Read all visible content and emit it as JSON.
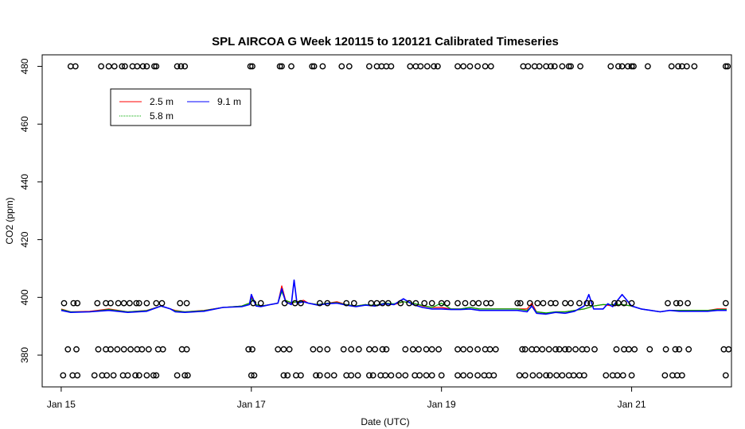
{
  "chart_data": {
    "type": "line",
    "title": "SPL AIRCOA G  Week 120115 to 120121  Calibrated Timeseries",
    "xlabel": "Date (UTC)",
    "ylabel": "CO2 (ppm)",
    "xlim": [
      -0.2,
      7.05
    ],
    "ylim": [
      369,
      484
    ],
    "x_ticks": [
      {
        "value": 0,
        "label": "Jan 15"
      },
      {
        "value": 2,
        "label": "Jan 17"
      },
      {
        "value": 4,
        "label": "Jan 19"
      },
      {
        "value": 6,
        "label": "Jan 21"
      }
    ],
    "y_ticks": [
      380,
      400,
      420,
      440,
      460,
      480
    ],
    "grid": false,
    "legend": {
      "placement": "top-left",
      "entries": [
        {
          "label": "2.5 m",
          "color": "#ff0000"
        },
        {
          "label": "9.1 m",
          "color": "#0000ff"
        },
        {
          "label": "5.8 m",
          "color": "#00aa00"
        }
      ]
    },
    "series": [
      {
        "name": "2.5 m",
        "color": "#ff0000",
        "x": [
          0.0,
          0.1,
          0.3,
          0.5,
          0.7,
          0.9,
          1.05,
          1.15,
          1.2,
          1.3,
          1.5,
          1.7,
          1.9,
          1.98,
          2.0,
          2.05,
          2.1,
          2.2,
          2.28,
          2.32,
          2.36,
          2.42,
          2.48,
          2.55,
          2.6,
          2.7,
          2.8,
          2.9,
          3.0,
          3.1,
          3.2,
          3.3,
          3.4,
          3.5,
          3.6,
          3.7,
          3.8,
          3.9,
          4.0,
          4.1,
          4.2,
          4.3,
          4.4,
          4.5,
          4.6,
          4.7,
          4.8,
          4.9,
          4.95,
          5.0,
          5.1,
          5.2,
          5.3,
          5.4,
          5.5,
          5.6,
          5.7,
          5.8,
          5.9,
          6.0,
          6.1,
          6.2,
          6.3,
          6.4,
          6.5,
          6.6,
          6.7,
          6.8,
          6.9,
          7.0
        ],
        "y": [
          396,
          395,
          395.2,
          396,
          395,
          395.5,
          397,
          396,
          395.5,
          395,
          395.5,
          396.5,
          397,
          398,
          400,
          397.5,
          397,
          397.5,
          398,
          404,
          399,
          398,
          398.5,
          399,
          398,
          397.5,
          398,
          398.5,
          397.5,
          397,
          397.5,
          397,
          398,
          397.5,
          398.5,
          398,
          397,
          396.5,
          396.5,
          396,
          396,
          396.5,
          396,
          396,
          396,
          396,
          396,
          396,
          398,
          395,
          394.5,
          395,
          395,
          395.5,
          396,
          397,
          397.5,
          397,
          397.5,
          397,
          396,
          395.5,
          395,
          395.5,
          395.5,
          395.5,
          395.5,
          395.5,
          396,
          396
        ]
      },
      {
        "name": "5.8 m",
        "color": "#00aa00",
        "x": [
          0.0,
          0.1,
          0.3,
          0.5,
          0.7,
          0.9,
          1.05,
          1.15,
          1.2,
          1.3,
          1.5,
          1.7,
          1.9,
          1.98,
          2.0,
          2.05,
          2.1,
          2.2,
          2.28,
          2.32,
          2.36,
          2.42,
          2.48,
          2.55,
          2.6,
          2.7,
          2.8,
          2.9,
          3.0,
          3.1,
          3.2,
          3.3,
          3.4,
          3.5,
          3.6,
          3.7,
          3.8,
          3.9,
          4.0,
          4.1,
          4.2,
          4.3,
          4.4,
          4.5,
          4.6,
          4.7,
          4.8,
          4.9,
          4.95,
          5.0,
          5.1,
          5.2,
          5.3,
          5.4,
          5.5,
          5.6,
          5.7,
          5.8,
          5.9,
          6.0,
          6.1,
          6.2,
          6.3,
          6.4,
          6.5,
          6.6,
          6.7,
          6.8,
          6.9,
          7.0
        ],
        "y": [
          395.8,
          395,
          395,
          395.8,
          395,
          395.4,
          397,
          396,
          395.3,
          395,
          395.4,
          396.5,
          397,
          398,
          399.5,
          397.5,
          397,
          397.5,
          398,
          402,
          399,
          398.2,
          398.5,
          398.5,
          398,
          397.5,
          398,
          398.2,
          397.5,
          397,
          397.5,
          397.2,
          398,
          397.8,
          398.5,
          398,
          397.2,
          396.5,
          398,
          396,
          396,
          396.5,
          396,
          396,
          396,
          396,
          396,
          395.5,
          397,
          395,
          394.6,
          395,
          395,
          395.5,
          396,
          397,
          397.5,
          397.5,
          397.5,
          397,
          396,
          395.5,
          395,
          395.5,
          395.5,
          395.5,
          395.5,
          395.5,
          395.8,
          395.8
        ]
      },
      {
        "name": "9.1 m",
        "color": "#0000ff",
        "x": [
          0.0,
          0.1,
          0.3,
          0.5,
          0.7,
          0.9,
          1.05,
          1.15,
          1.2,
          1.3,
          1.5,
          1.7,
          1.9,
          1.98,
          2.0,
          2.05,
          2.1,
          2.2,
          2.28,
          2.32,
          2.36,
          2.42,
          2.45,
          2.48,
          2.55,
          2.6,
          2.7,
          2.8,
          2.9,
          3.0,
          3.1,
          3.2,
          3.3,
          3.4,
          3.5,
          3.6,
          3.7,
          3.8,
          3.9,
          4.0,
          4.1,
          4.2,
          4.3,
          4.4,
          4.5,
          4.6,
          4.7,
          4.8,
          4.9,
          4.95,
          5.0,
          5.1,
          5.2,
          5.3,
          5.4,
          5.5,
          5.55,
          5.6,
          5.7,
          5.75,
          5.8,
          5.9,
          6.0,
          6.1,
          6.2,
          6.3,
          6.4,
          6.5,
          6.6,
          6.7,
          6.8,
          6.9,
          7.0
        ],
        "y": [
          395.5,
          394.8,
          395,
          395.5,
          394.8,
          395.2,
          397,
          396,
          395,
          394.8,
          395.2,
          396.5,
          396.8,
          397.5,
          401,
          397,
          396.8,
          397.5,
          398,
          403,
          398.5,
          397.5,
          406,
          398,
          398.5,
          398,
          397.3,
          397.8,
          398,
          397.3,
          396.8,
          397.3,
          397,
          397.8,
          397.5,
          399.5,
          397.5,
          396.5,
          396,
          396,
          395.8,
          395.8,
          396,
          395.5,
          395.5,
          395.5,
          395.5,
          395.5,
          395,
          397,
          394.5,
          394.2,
          394.8,
          394.5,
          395.2,
          397,
          401,
          396,
          396,
          397.8,
          396.8,
          401,
          397,
          396,
          395.5,
          395,
          395.5,
          395.2,
          395.2,
          395.2,
          395.2,
          395.5,
          395.5
        ]
      }
    ],
    "flag_points": {
      "marker": "open-circle",
      "levels": [
        {
          "y": 480,
          "x": [
            0.1,
            0.15,
            0.42,
            0.5,
            0.56,
            0.64,
            0.67,
            0.75,
            0.8,
            0.86,
            0.9,
            0.98,
            1.0,
            1.22,
            1.26,
            1.3,
            1.99,
            2.01,
            2.3,
            2.32,
            2.42,
            2.64,
            2.66,
            2.75,
            2.95,
            3.03,
            3.24,
            3.32,
            3.37,
            3.42,
            3.47,
            3.67,
            3.73,
            3.78,
            3.85,
            3.92,
            3.96,
            4.17,
            4.23,
            4.3,
            4.38,
            4.46,
            4.52,
            4.86,
            4.91,
            4.98,
            5.03,
            5.1,
            5.15,
            5.19,
            5.27,
            5.34,
            5.36,
            5.46,
            5.78,
            5.86,
            5.9,
            5.96,
            6.0,
            6.02,
            6.17,
            6.42,
            6.49,
            6.53,
            6.58,
            6.66,
            6.99,
            7.01
          ]
        },
        {
          "y": 398,
          "x": [
            0.03,
            0.13,
            0.17,
            0.38,
            0.47,
            0.52,
            0.6,
            0.66,
            0.72,
            0.79,
            0.82,
            0.9,
            1.0,
            1.06,
            1.25,
            1.32,
            2.02,
            2.1,
            2.35,
            2.46,
            2.52,
            2.72,
            2.8,
            3.0,
            3.08,
            3.26,
            3.32,
            3.38,
            3.44,
            3.57,
            3.66,
            3.73,
            3.82,
            3.9,
            4.0,
            4.06,
            4.17,
            4.25,
            4.33,
            4.39,
            4.47,
            4.52,
            4.8,
            4.83,
            4.93,
            5.01,
            5.07,
            5.15,
            5.2,
            5.3,
            5.36,
            5.45,
            5.53,
            5.57,
            5.82,
            5.86,
            5.92,
            6.0,
            6.38,
            6.47,
            6.51,
            6.59,
            6.99
          ]
        },
        {
          "y": 382,
          "x": [
            0.07,
            0.16,
            0.39,
            0.47,
            0.52,
            0.59,
            0.66,
            0.73,
            0.8,
            0.85,
            0.92,
            1.02,
            1.07,
            1.27,
            1.32,
            1.97,
            2.01,
            2.28,
            2.34,
            2.4,
            2.65,
            2.72,
            2.8,
            2.97,
            3.05,
            3.13,
            3.24,
            3.3,
            3.38,
            3.42,
            3.62,
            3.7,
            3.76,
            3.84,
            3.9,
            3.97,
            4.17,
            4.23,
            4.3,
            4.38,
            4.46,
            4.51,
            4.57,
            4.85,
            4.88,
            4.95,
            5.0,
            5.06,
            5.13,
            5.2,
            5.24,
            5.3,
            5.34,
            5.41,
            5.48,
            5.53,
            5.61,
            5.84,
            5.92,
            5.97,
            6.03,
            6.19,
            6.36,
            6.46,
            6.5,
            6.6,
            6.97,
            7.02
          ]
        },
        {
          "y": 373,
          "x": [
            0.02,
            0.12,
            0.17,
            0.35,
            0.43,
            0.48,
            0.55,
            0.65,
            0.7,
            0.78,
            0.82,
            0.9,
            0.97,
            1.0,
            1.22,
            1.3,
            1.33,
            2.0,
            2.03,
            2.34,
            2.38,
            2.47,
            2.52,
            2.68,
            2.72,
            2.8,
            2.87,
            3.0,
            3.05,
            3.12,
            3.24,
            3.28,
            3.36,
            3.41,
            3.47,
            3.55,
            3.62,
            3.72,
            3.77,
            3.84,
            3.9,
            4.0,
            4.17,
            4.23,
            4.3,
            4.38,
            4.45,
            4.5,
            4.55,
            4.82,
            4.88,
            4.96,
            5.03,
            5.1,
            5.14,
            5.21,
            5.27,
            5.34,
            5.39,
            5.45,
            5.5,
            5.73,
            5.8,
            5.85,
            5.91,
            6.0,
            6.35,
            6.43,
            6.48,
            6.53,
            6.99
          ]
        }
      ]
    }
  }
}
